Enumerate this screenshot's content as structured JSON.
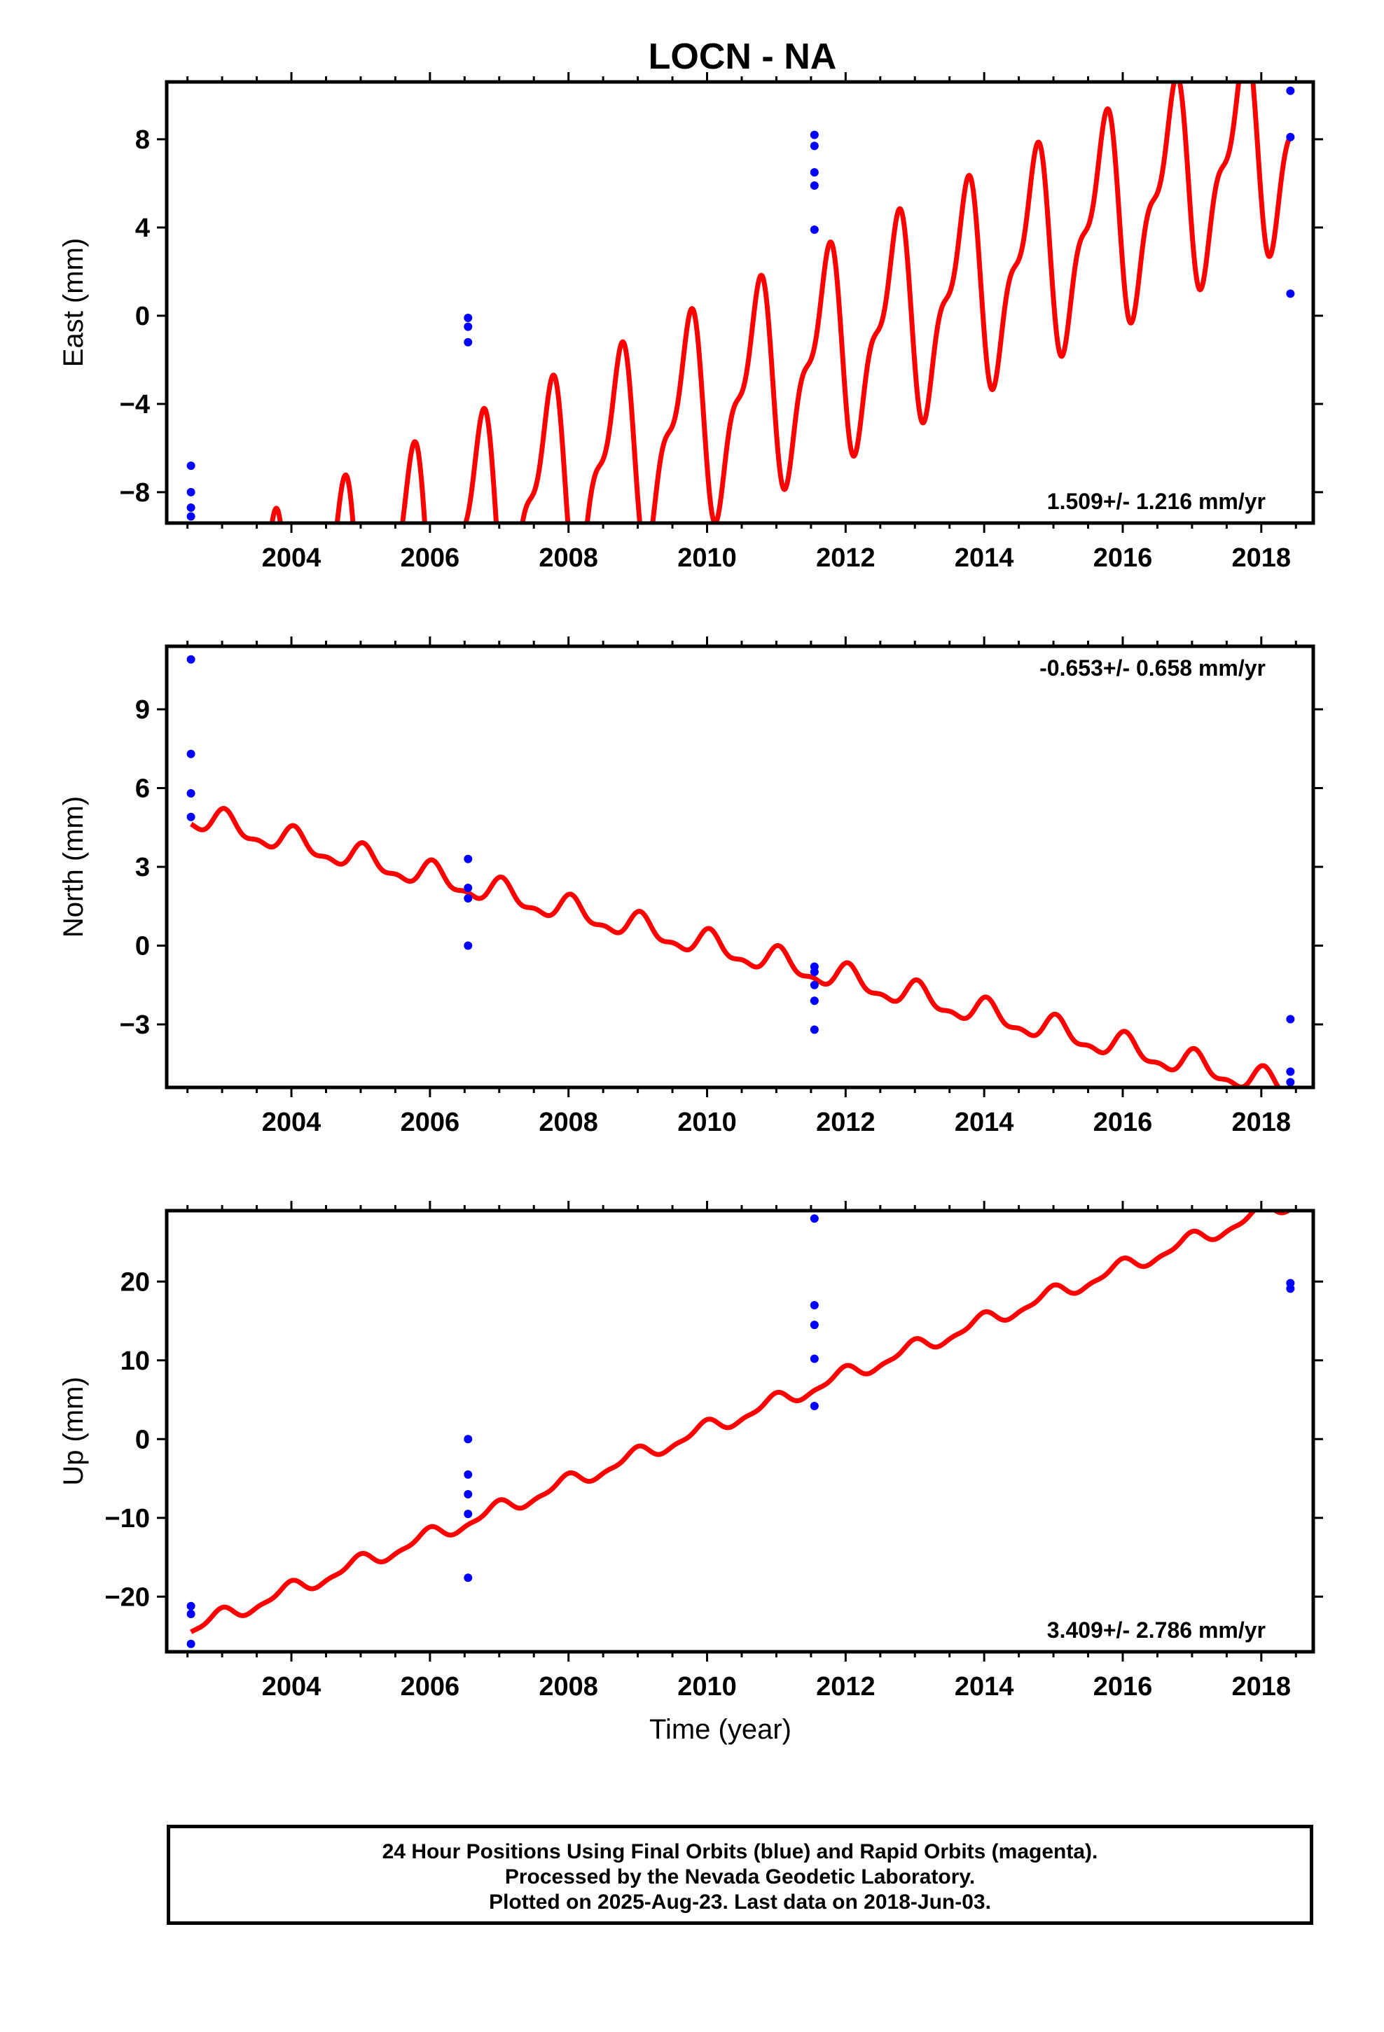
{
  "title": "LOCN - NA",
  "colors": {
    "model": "#ff0000",
    "final_orbits": "#0000ff",
    "frame": "#000000"
  },
  "footer": {
    "line1": "24 Hour Positions Using Final Orbits (blue) and Rapid Orbits (magenta).",
    "line2": "Processed by the Nevada Geodetic Laboratory.",
    "line3": "Plotted on 2025-Aug-23. Last data on 2018-Jun-03."
  },
  "chart_data": [
    {
      "type": "scatter",
      "id": "east",
      "ylabel": "East (mm)",
      "xlabel": "",
      "xlim": [
        2002.2,
        2018.75
      ],
      "ylim": [
        -9.4,
        10.6
      ],
      "xticks": [
        2004,
        2006,
        2008,
        2010,
        2012,
        2014,
        2016,
        2018
      ],
      "yticks": [
        -8,
        -4,
        0,
        4,
        8
      ],
      "ytick_labels": [
        "−8",
        "−4",
        "0",
        "4",
        "8"
      ],
      "rate_label": "1.509+/- 1.216 mm/yr",
      "rate_position": "bottom-right",
      "model": {
        "slope": 1.509,
        "ref_year": 2010.5,
        "offset": -3.7,
        "amp_annual": 4.1,
        "amp_semiannual": 1.8,
        "phase_annual": 0.55,
        "phase_semiannual": 0.3
      },
      "points": [
        {
          "x": 2002.55,
          "y": -6.8
        },
        {
          "x": 2002.55,
          "y": -8.0
        },
        {
          "x": 2002.55,
          "y": -8.7
        },
        {
          "x": 2002.55,
          "y": -9.1
        },
        {
          "x": 2006.55,
          "y": -0.1
        },
        {
          "x": 2006.55,
          "y": -0.5
        },
        {
          "x": 2006.55,
          "y": -1.2
        },
        {
          "x": 2011.55,
          "y": 8.2
        },
        {
          "x": 2011.55,
          "y": 7.7
        },
        {
          "x": 2011.55,
          "y": 6.5
        },
        {
          "x": 2011.55,
          "y": 5.9
        },
        {
          "x": 2011.55,
          "y": 3.9
        },
        {
          "x": 2018.42,
          "y": 10.2
        },
        {
          "x": 2018.42,
          "y": 8.1
        },
        {
          "x": 2018.42,
          "y": 1.0
        }
      ]
    },
    {
      "type": "scatter",
      "id": "north",
      "ylabel": "North (mm)",
      "xlabel": "",
      "xlim": [
        2002.2,
        2018.75
      ],
      "ylim": [
        -5.4,
        11.4
      ],
      "xticks": [
        2004,
        2006,
        2008,
        2010,
        2012,
        2014,
        2016,
        2018
      ],
      "yticks": [
        -3,
        0,
        3,
        6,
        9
      ],
      "ytick_labels": [
        "−3",
        "0",
        "3",
        "6",
        "9"
      ],
      "rate_label": "-0.653+/- 0.658 mm/yr",
      "rate_position": "top-right",
      "model": {
        "slope": -0.653,
        "ref_year": 2010.5,
        "offset": -0.3,
        "amp_annual": 0.45,
        "amp_semiannual": 0.2,
        "phase_annual": 0.2,
        "phase_semiannual": 0.1
      },
      "points": [
        {
          "x": 2002.55,
          "y": 10.9
        },
        {
          "x": 2002.55,
          "y": 7.3
        },
        {
          "x": 2002.55,
          "y": 5.8
        },
        {
          "x": 2002.55,
          "y": 4.9
        },
        {
          "x": 2006.55,
          "y": 3.3
        },
        {
          "x": 2006.55,
          "y": 2.2
        },
        {
          "x": 2006.55,
          "y": 1.8
        },
        {
          "x": 2006.55,
          "y": 0.0
        },
        {
          "x": 2011.55,
          "y": -0.8
        },
        {
          "x": 2011.55,
          "y": -1.0
        },
        {
          "x": 2011.55,
          "y": -1.5
        },
        {
          "x": 2011.55,
          "y": -2.1
        },
        {
          "x": 2011.55,
          "y": -3.2
        },
        {
          "x": 2018.42,
          "y": -2.8
        },
        {
          "x": 2018.42,
          "y": -4.8
        },
        {
          "x": 2018.42,
          "y": -5.2
        }
      ]
    },
    {
      "type": "scatter",
      "id": "up",
      "ylabel": "Up (mm)",
      "xlabel": "Time (year)",
      "xlim": [
        2002.2,
        2018.75
      ],
      "ylim": [
        -27,
        29
      ],
      "xticks": [
        2004,
        2006,
        2008,
        2010,
        2012,
        2014,
        2016,
        2018
      ],
      "yticks": [
        -20,
        -10,
        0,
        10,
        20
      ],
      "ytick_labels": [
        "−20",
        "−10",
        "0",
        "10",
        "20"
      ],
      "rate_label": "3.409+/- 2.786 mm/yr",
      "rate_position": "bottom-right",
      "model": {
        "slope": 3.409,
        "ref_year": 2010.5,
        "offset": 3.0,
        "amp_annual": 0.9,
        "amp_semiannual": 0.35,
        "phase_annual": 0.3,
        "phase_semiannual": 0.1
      },
      "points": [
        {
          "x": 2002.55,
          "y": -21.2
        },
        {
          "x": 2002.55,
          "y": -22.2
        },
        {
          "x": 2002.55,
          "y": -26.0
        },
        {
          "x": 2006.55,
          "y": 0.0
        },
        {
          "x": 2006.55,
          "y": -4.5
        },
        {
          "x": 2006.55,
          "y": -7.0
        },
        {
          "x": 2006.55,
          "y": -9.5
        },
        {
          "x": 2006.55,
          "y": -17.6
        },
        {
          "x": 2011.55,
          "y": 28.0
        },
        {
          "x": 2011.55,
          "y": 17.0
        },
        {
          "x": 2011.55,
          "y": 14.5
        },
        {
          "x": 2011.55,
          "y": 10.2
        },
        {
          "x": 2011.55,
          "y": 4.2
        },
        {
          "x": 2018.42,
          "y": 19.8
        },
        {
          "x": 2018.42,
          "y": 19.1
        }
      ]
    }
  ]
}
